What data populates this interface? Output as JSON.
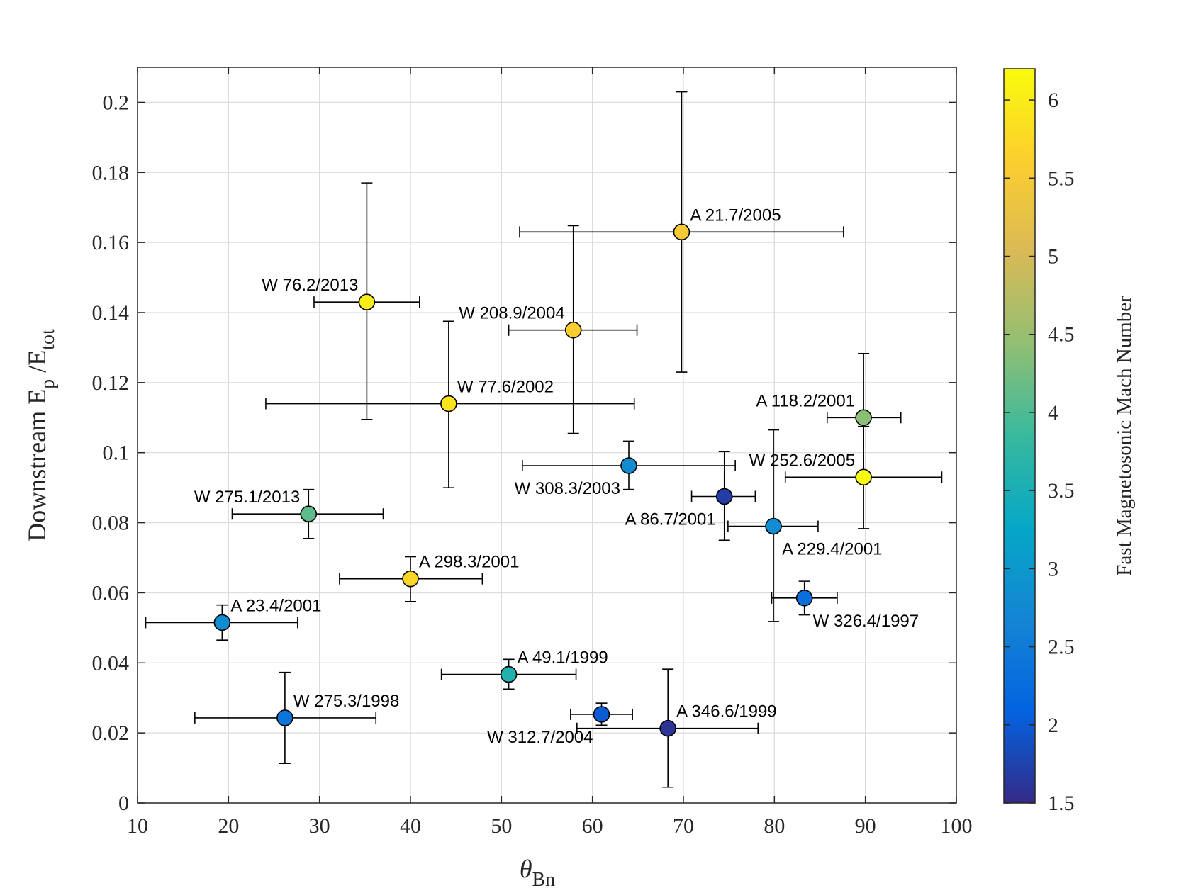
{
  "chart_data": {
    "type": "scatter",
    "xlabel": "θ",
    "xlabel_sub": "Bn",
    "ylabel": "Downstream E",
    "ylabel_sub1": "p",
    "ylabel_mid": " /E",
    "ylabel_sub2": "tot",
    "xlim": [
      10,
      100
    ],
    "ylim": [
      0,
      0.21
    ],
    "x_ticks": [
      10,
      20,
      30,
      40,
      50,
      60,
      70,
      80,
      90,
      100
    ],
    "y_ticks": [
      0,
      0.02,
      0.04,
      0.06,
      0.08,
      0.1,
      0.12,
      0.14,
      0.16,
      0.18,
      0.2
    ],
    "y_tick_labels": [
      "0",
      "0.02",
      "0.04",
      "0.06",
      "0.08",
      "0.1",
      "0.12",
      "0.14",
      "0.16",
      "0.18",
      "0.2"
    ],
    "grid": true,
    "colorbar": {
      "label": "Fast Magnetosonic Mach Number",
      "range": [
        1.5,
        6.2
      ],
      "ticks": [
        1.5,
        2,
        2.5,
        3,
        3.5,
        4,
        4.5,
        5,
        5.5,
        6
      ],
      "tick_labels": [
        "1.5",
        "2",
        "2.5",
        "3",
        "3.5",
        "4",
        "4.5",
        "5",
        "5.5",
        "6"
      ],
      "colormap": "parula"
    },
    "points": [
      {
        "label": "A 21.7/2005",
        "x": 69.8,
        "y": 0.163,
        "xerr": [
          52.0,
          87.6
        ],
        "yerr": [
          0.123,
          0.203
        ],
        "mach": 5.5,
        "label_pos": "upper-right"
      },
      {
        "label": "W 76.2/2013",
        "x": 35.2,
        "y": 0.143,
        "xerr": [
          29.4,
          41.0
        ],
        "yerr": [
          0.1095,
          0.177
        ],
        "mach": 6.0,
        "label_pos": "upper-left"
      },
      {
        "label": "W 208.9/2004",
        "x": 57.9,
        "y": 0.135,
        "xerr": [
          50.8,
          64.9
        ],
        "yerr": [
          0.1055,
          0.1648
        ],
        "mach": 5.6,
        "label_pos": "upper-left"
      },
      {
        "label": "W 77.6/2002",
        "x": 44.2,
        "y": 0.114,
        "xerr": [
          24.1,
          64.6
        ],
        "yerr": [
          0.09,
          0.1375
        ],
        "mach": 5.9,
        "label_pos": "upper-right"
      },
      {
        "label": "A 118.2/2001",
        "x": 89.8,
        "y": 0.11,
        "xerr": [
          85.8,
          93.9
        ],
        "yerr": [
          0.092,
          0.1283
        ],
        "mach": 4.4,
        "label_pos": "upper-left"
      },
      {
        "label": "W 252.6/2005",
        "x": 89.8,
        "y": 0.093,
        "xerr": [
          81.2,
          98.4
        ],
        "yerr": [
          0.0783,
          0.1075
        ],
        "mach": 6.2,
        "label_pos": "upper-left"
      },
      {
        "label": "W 308.3/2003",
        "x": 64.0,
        "y": 0.0963,
        "xerr": [
          52.3,
          75.7
        ],
        "yerr": [
          0.0895,
          0.1033
        ],
        "mach": 2.8,
        "label_pos": "lower-left"
      },
      {
        "label": "A 86.7/2001",
        "x": 74.5,
        "y": 0.0875,
        "xerr": [
          70.9,
          77.9
        ],
        "yerr": [
          0.075,
          0.1003
        ],
        "mach": 1.7,
        "label_pos": "lower-left"
      },
      {
        "label": "A 229.4/2001",
        "x": 79.9,
        "y": 0.079,
        "xerr": [
          74.9,
          84.8
        ],
        "yerr": [
          0.0518,
          0.1065
        ],
        "mach": 2.8,
        "label_pos": "lower-right"
      },
      {
        "label": "W 275.1/2013",
        "x": 28.8,
        "y": 0.0825,
        "xerr": [
          20.4,
          37.0
        ],
        "yerr": [
          0.0755,
          0.0895
        ],
        "mach": 4.1,
        "label_pos": "upper-left"
      },
      {
        "label": "A 298.3/2001",
        "x": 40.0,
        "y": 0.064,
        "xerr": [
          32.2,
          47.9
        ],
        "yerr": [
          0.0575,
          0.0703
        ],
        "mach": 5.7,
        "label_pos": "upper-right"
      },
      {
        "label": "W 326.4/1997",
        "x": 83.3,
        "y": 0.0585,
        "xerr": [
          79.7,
          86.9
        ],
        "yerr": [
          0.0537,
          0.0633
        ],
        "mach": 2.3,
        "label_pos": "lower-right"
      },
      {
        "label": "A 23.4/2001",
        "x": 19.3,
        "y": 0.0515,
        "xerr": [
          10.9,
          27.6
        ],
        "yerr": [
          0.0465,
          0.0565
        ],
        "mach": 2.8,
        "label_pos": "upper-right"
      },
      {
        "label": "A 49.1/1999",
        "x": 50.8,
        "y": 0.0367,
        "xerr": [
          43.4,
          58.2
        ],
        "yerr": [
          0.0325,
          0.041
        ],
        "mach": 3.6,
        "label_pos": "upper-right"
      },
      {
        "label": "W 275.3/1998",
        "x": 26.2,
        "y": 0.0243,
        "xerr": [
          16.3,
          36.2
        ],
        "yerr": [
          0.0113,
          0.0373
        ],
        "mach": 2.4,
        "label_pos": "upper-right"
      },
      {
        "label": "W 312.7/2004",
        "x": 61.0,
        "y": 0.0253,
        "xerr": [
          57.6,
          64.4
        ],
        "yerr": [
          0.0222,
          0.0285
        ],
        "mach": 2.0,
        "label_pos": "lower-left"
      },
      {
        "label": "A 346.6/1999",
        "x": 68.3,
        "y": 0.0213,
        "xerr": [
          58.3,
          78.2
        ],
        "yerr": [
          0.0045,
          0.0382
        ],
        "mach": 1.6,
        "label_pos": "upper-right"
      }
    ]
  }
}
